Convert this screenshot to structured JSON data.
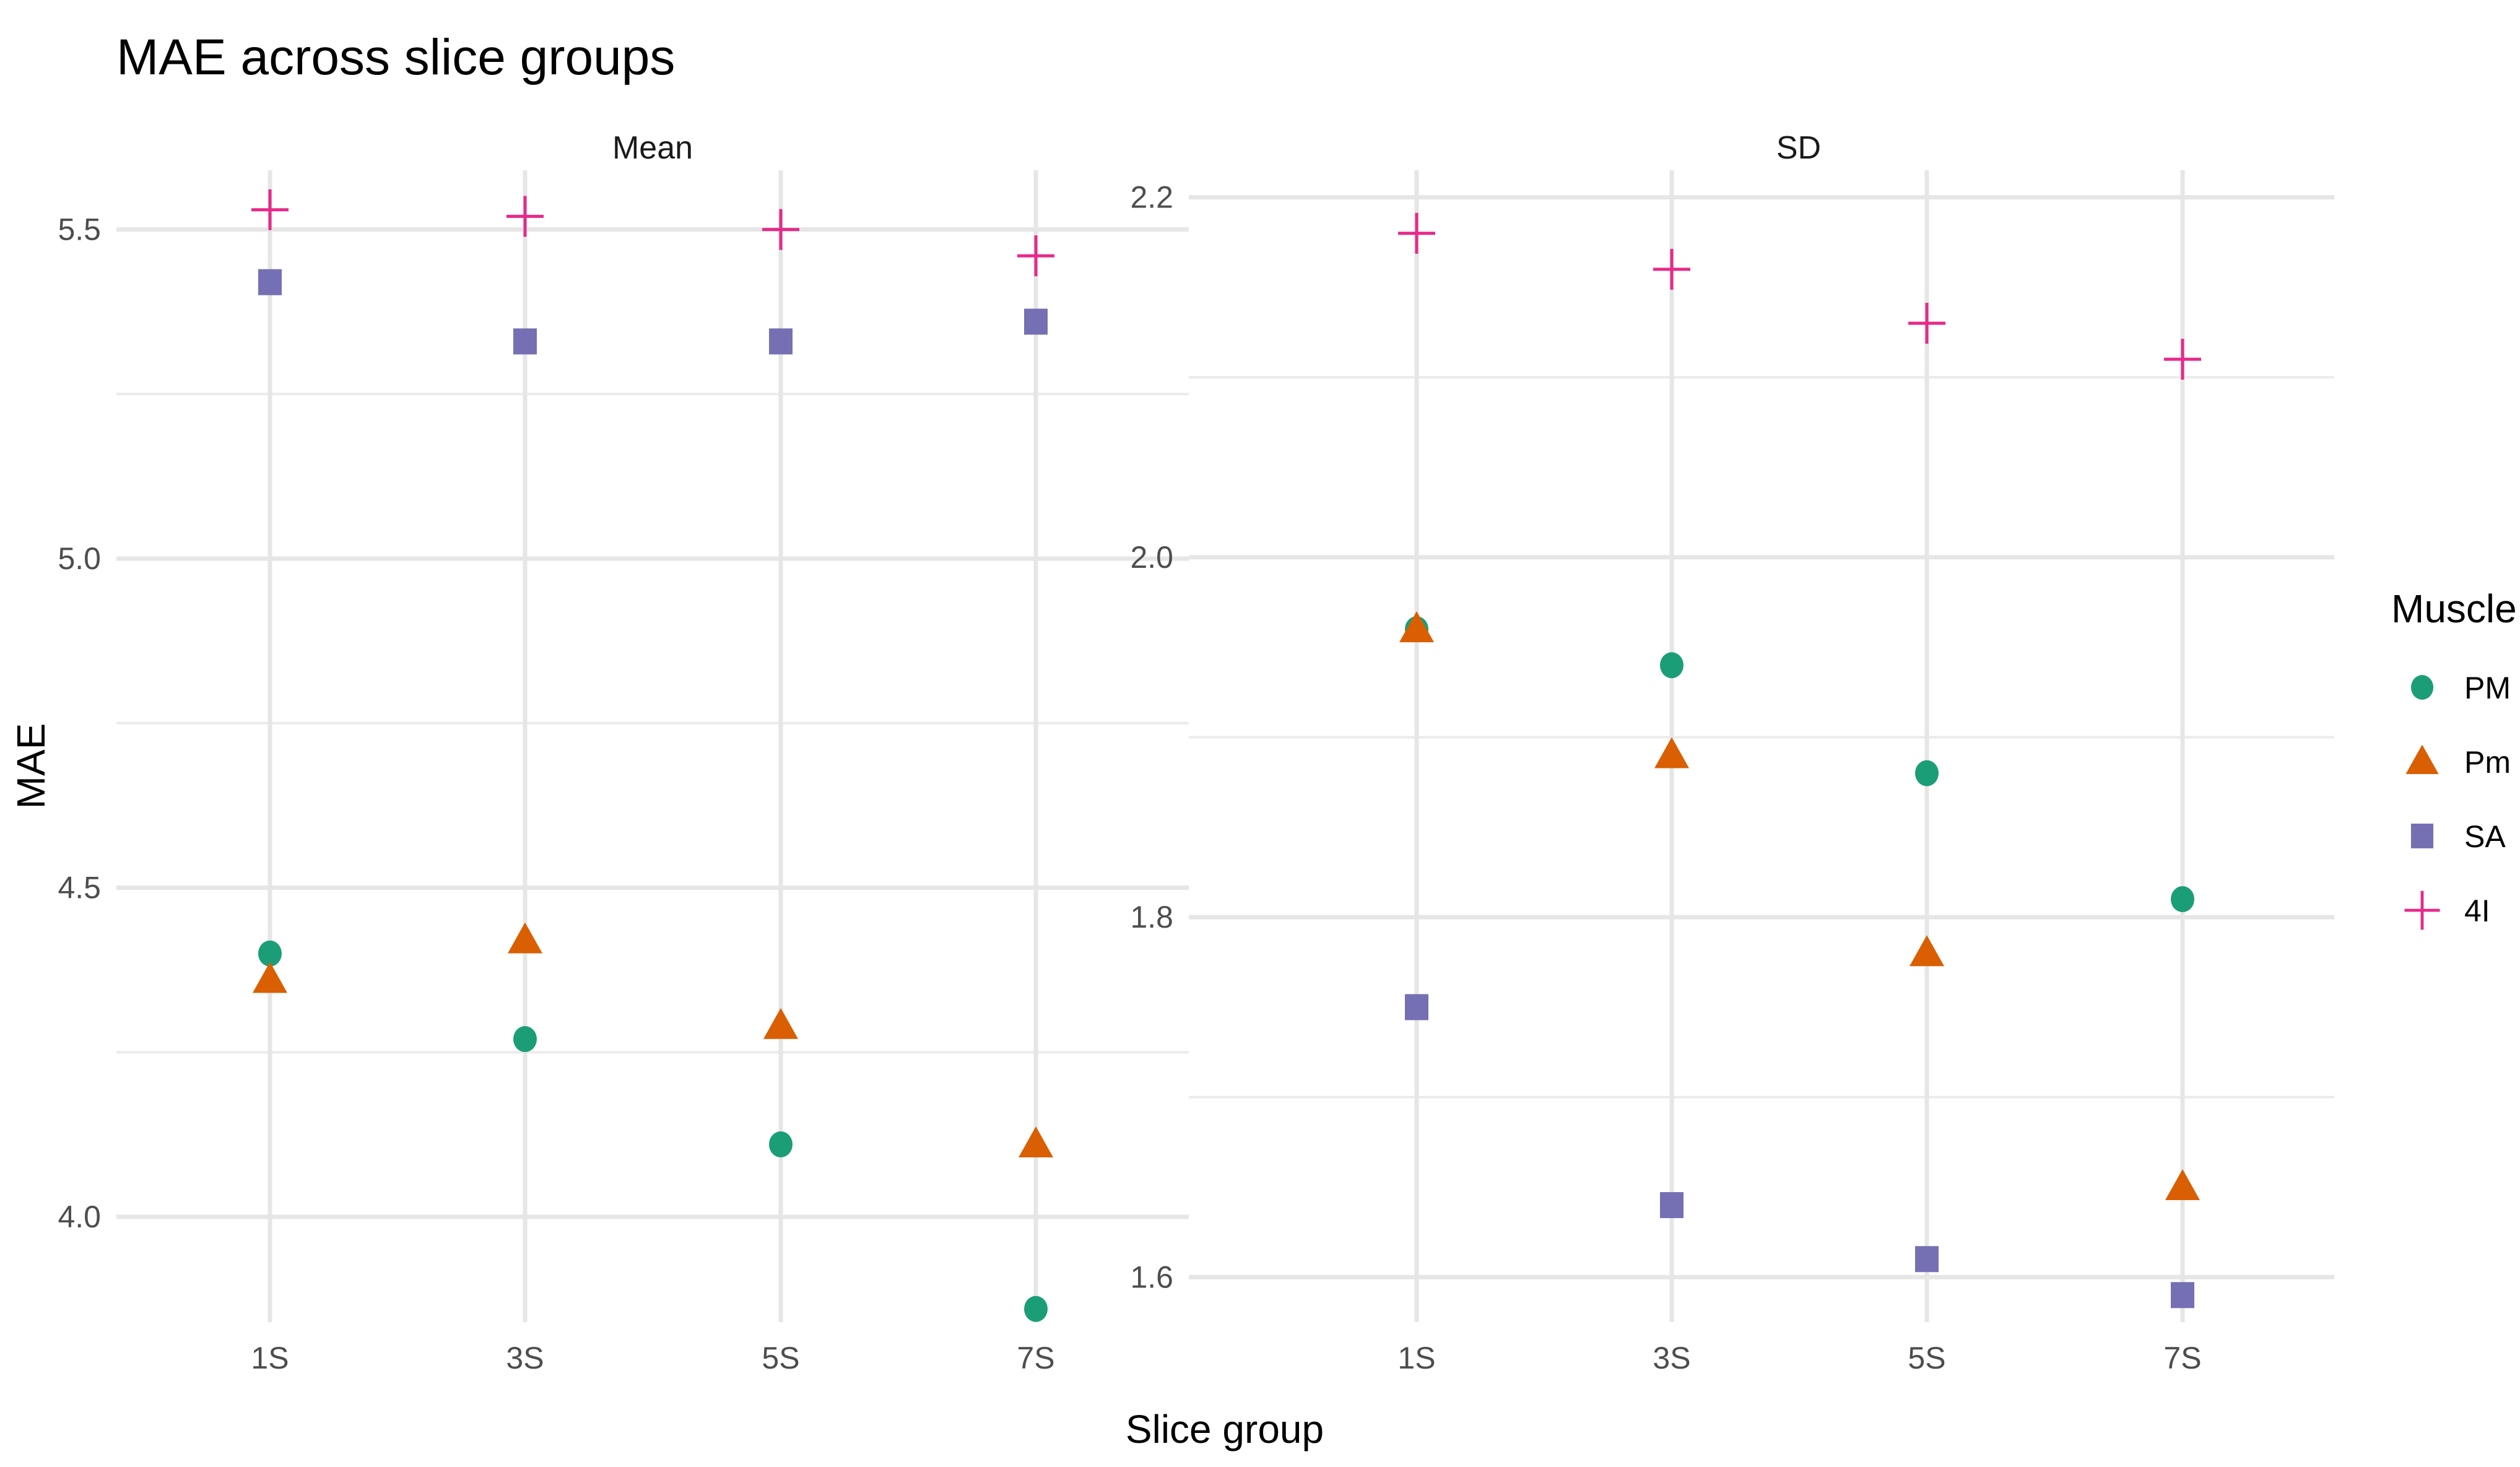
{
  "chart_data": {
    "type": "scatter",
    "title": "MAE across slice groups",
    "xlabel": "Slice group",
    "ylabel": "MAE",
    "categories": [
      "1S",
      "3S",
      "5S",
      "7S"
    ],
    "legend": {
      "title": "Muscle",
      "position": "right",
      "entries": [
        {
          "name": "PM",
          "color": "#1B9E77",
          "shape": "circle"
        },
        {
          "name": "Pm",
          "color": "#D95F02",
          "shape": "triangle"
        },
        {
          "name": "SA",
          "color": "#7570B3",
          "shape": "square"
        },
        {
          "name": "4I",
          "color": "#E7298A",
          "shape": "plus"
        }
      ]
    },
    "panels": [
      {
        "name": "Mean",
        "ylim": [
          3.84,
          5.59
        ],
        "yticks": [
          4.0,
          4.5,
          5.0,
          5.5
        ],
        "ytick_labels": [
          "4.0",
          "4.5",
          "5.0",
          "5.5"
        ],
        "series": [
          {
            "name": "PM",
            "values": [
              4.4,
              4.27,
              4.11,
              3.86
            ]
          },
          {
            "name": "Pm",
            "values": [
              4.36,
              4.42,
              4.29,
              4.11
            ]
          },
          {
            "name": "SA",
            "values": [
              5.42,
              5.33,
              5.33,
              5.36
            ]
          },
          {
            "name": "4I",
            "values": [
              5.53,
              5.52,
              5.5,
              5.46
            ]
          }
        ]
      },
      {
        "name": "SD",
        "ylim": [
          1.575,
          2.215
        ],
        "yticks": [
          1.6,
          1.8,
          2.0,
          2.2
        ],
        "ytick_labels": [
          "1.6",
          "1.8",
          "2.0",
          "2.2"
        ],
        "series": [
          {
            "name": "PM",
            "values": [
              1.96,
              1.94,
              1.88,
              1.81
            ]
          },
          {
            "name": "Pm",
            "values": [
              1.96,
              1.89,
              1.78,
              1.65
            ]
          },
          {
            "name": "SA",
            "values": [
              1.75,
              1.64,
              1.61,
              1.59
            ]
          },
          {
            "name": "4I",
            "values": [
              2.18,
              2.16,
              2.13,
              2.11
            ]
          }
        ]
      }
    ]
  }
}
